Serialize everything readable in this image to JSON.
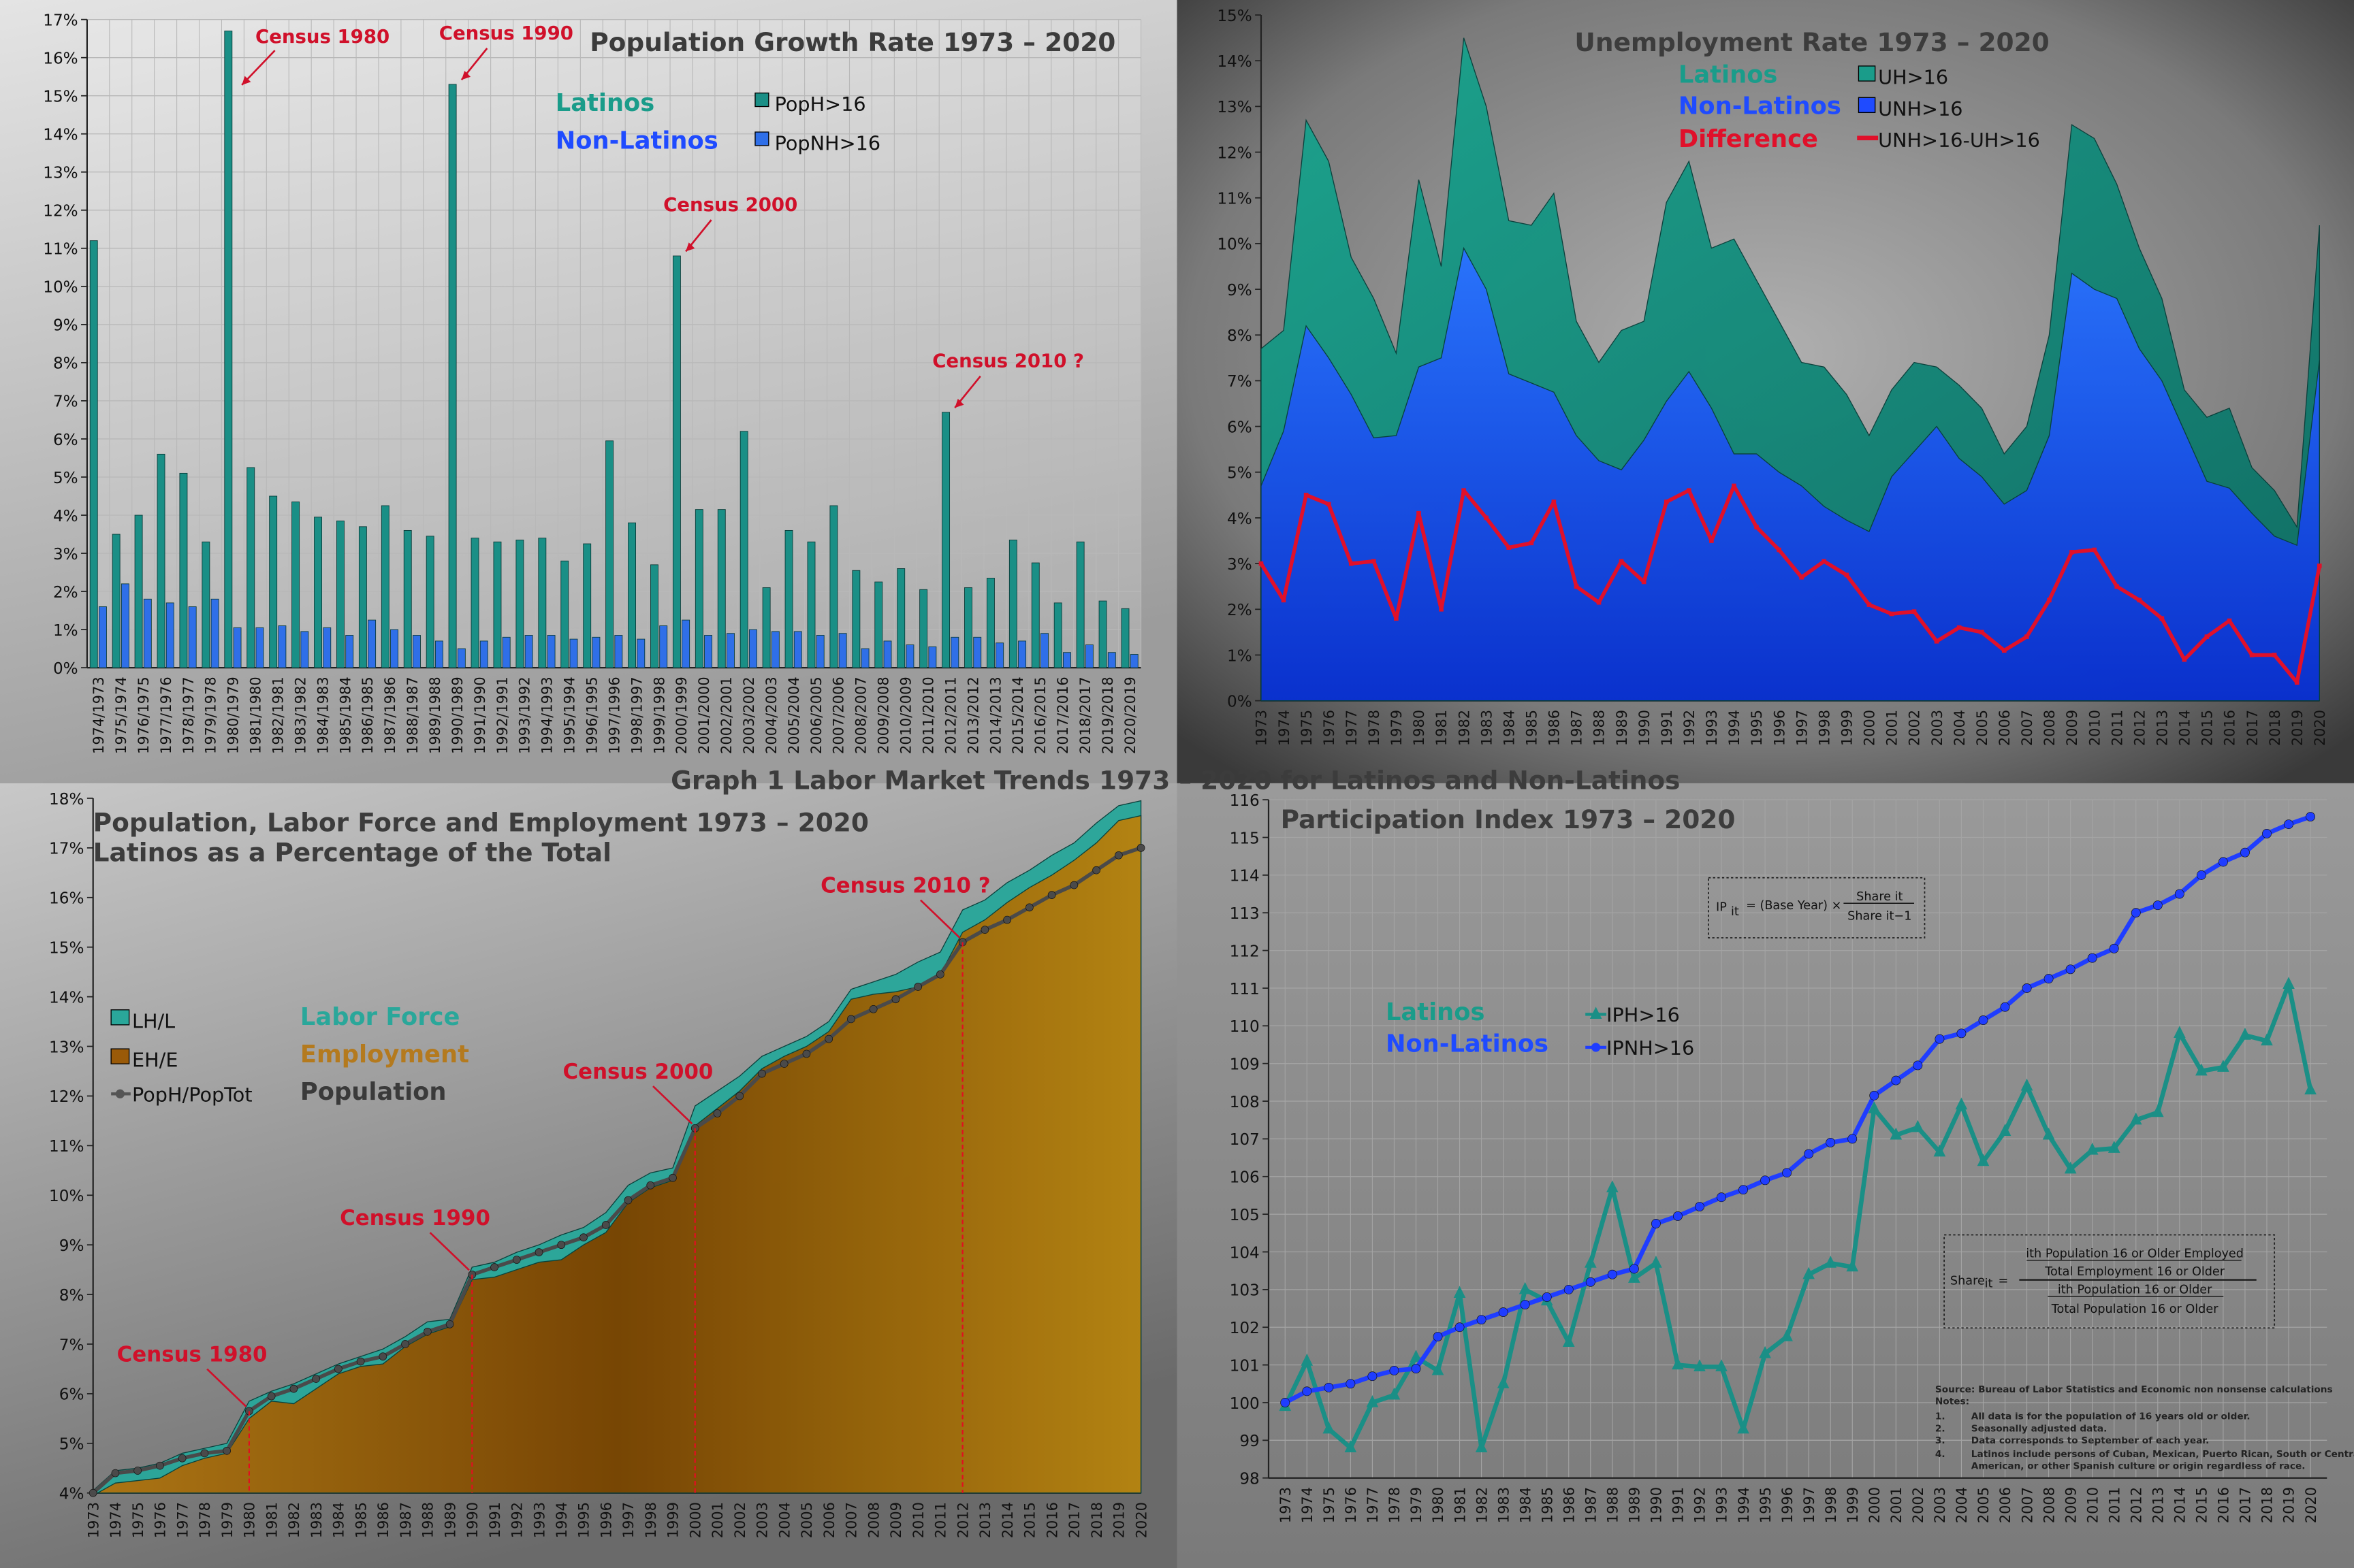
{
  "page_title": "Graph 1 Labor Market Trends 1973 – 2020 for Latinos and Non-Latinos",
  "colors": {
    "latinos": "#1a9c8a",
    "non_latinos": "#1f4bff",
    "difference": "#e0102a",
    "employment": "#b47a1e",
    "population": "#3a3a3a"
  },
  "chart_data": [
    {
      "type": "bar",
      "title": "Population Growth Rate 1973 – 2020",
      "ylim": [
        0,
        17
      ],
      "yticks": [
        "0%",
        "1%",
        "2%",
        "3%",
        "4%",
        "5%",
        "6%",
        "7%",
        "8%",
        "9%",
        "10%",
        "11%",
        "12%",
        "13%",
        "14%",
        "15%",
        "16%",
        "17%"
      ],
      "grid": true,
      "legend_position": "top-right",
      "categories": [
        "1974/1973",
        "1975/1974",
        "1976/1975",
        "1977/1976",
        "1978/1977",
        "1979/1978",
        "1980/1979",
        "1981/1980",
        "1982/1981",
        "1983/1982",
        "1984/1983",
        "1985/1984",
        "1986/1985",
        "1987/1986",
        "1988/1987",
        "1989/1988",
        "1990/1989",
        "1991/1990",
        "1992/1991",
        "1993/1992",
        "1994/1993",
        "1995/1994",
        "1996/1995",
        "1997/1996",
        "1998/1997",
        "1999/1998",
        "2000/1999",
        "2001/2000",
        "2002/2001",
        "2003/2002",
        "2004/2003",
        "2005/2004",
        "2006/2005",
        "2007/2006",
        "2008/2007",
        "2009/2008",
        "2010/2009",
        "2011/2010",
        "2012/2011",
        "2013/2012",
        "2014/2013",
        "2015/2014",
        "2016/2015",
        "2017/2016",
        "2018/2017",
        "2019/2018",
        "2020/2019"
      ],
      "series": [
        {
          "group": "Latinos",
          "name": "PopH>16",
          "color": "#1a8f86",
          "values": [
            11.2,
            3.5,
            4.0,
            5.6,
            5.1,
            3.3,
            16.7,
            5.25,
            4.5,
            4.35,
            3.95,
            3.85,
            3.7,
            4.25,
            3.6,
            3.45,
            15.3,
            3.4,
            3.3,
            3.35,
            3.4,
            2.8,
            3.25,
            5.95,
            3.8,
            2.7,
            10.8,
            4.15,
            4.15,
            6.2,
            2.1,
            3.6,
            3.3,
            4.25,
            2.55,
            2.25,
            2.6,
            2.05,
            6.7,
            2.1,
            2.35,
            3.35,
            2.75,
            1.7,
            3.3,
            1.75,
            1.55
          ]
        },
        {
          "group": "Non-Latinos",
          "name": "PopNH>16",
          "color": "#2f6fe8",
          "values": [
            1.6,
            2.2,
            1.8,
            1.7,
            1.6,
            1.8,
            1.05,
            1.05,
            1.1,
            0.95,
            1.05,
            0.85,
            1.25,
            1.0,
            0.85,
            0.7,
            0.5,
            0.7,
            0.8,
            0.85,
            0.85,
            0.75,
            0.8,
            0.85,
            0.75,
            1.1,
            1.25,
            0.85,
            0.9,
            1.0,
            0.95,
            0.95,
            0.85,
            0.9,
            0.5,
            0.7,
            0.6,
            0.55,
            0.8,
            0.8,
            0.65,
            0.7,
            0.9,
            0.4,
            0.6,
            0.4,
            0.35
          ]
        }
      ],
      "annotations": [
        {
          "label": "Census 1980",
          "category": "1980/1979"
        },
        {
          "label": "Census 1990",
          "category": "1990/1989"
        },
        {
          "label": "Census 2000",
          "category": "2000/1999"
        },
        {
          "label": "Census 2010 ?",
          "category": "2012/2011"
        }
      ]
    },
    {
      "type": "area",
      "title": "Unemployment Rate 1973 – 2020",
      "ylim": [
        0,
        15
      ],
      "yticks": [
        "0%",
        "1%",
        "2%",
        "3%",
        "4%",
        "5%",
        "6%",
        "7%",
        "8%",
        "9%",
        "10%",
        "11%",
        "12%",
        "13%",
        "14%",
        "15%"
      ],
      "grid": false,
      "legend_position": "top",
      "categories": [
        "1973",
        "1974",
        "1975",
        "1976",
        "1977",
        "1978",
        "1979",
        "1980",
        "1981",
        "1982",
        "1983",
        "1984",
        "1985",
        "1986",
        "1987",
        "1988",
        "1989",
        "1990",
        "1991",
        "1992",
        "1993",
        "1994",
        "1995",
        "1996",
        "1997",
        "1998",
        "1999",
        "2000",
        "2001",
        "2002",
        "2003",
        "2004",
        "2005",
        "2006",
        "2007",
        "2008",
        "2009",
        "2010",
        "2011",
        "2012",
        "2013",
        "2014",
        "2015",
        "2016",
        "2017",
        "2018",
        "2019",
        "2020"
      ],
      "series": [
        {
          "group": "Latinos",
          "name": "UH>16",
          "render": "area",
          "color": "#1a9c8a",
          "values": [
            7.7,
            8.1,
            12.7,
            11.8,
            9.7,
            8.8,
            7.6,
            11.4,
            9.5,
            14.5,
            13.0,
            10.5,
            10.4,
            11.1,
            8.3,
            7.4,
            8.1,
            8.3,
            10.9,
            11.8,
            9.9,
            10.1,
            9.2,
            8.3,
            7.4,
            7.3,
            6.7,
            5.8,
            6.8,
            7.4,
            7.3,
            6.9,
            6.4,
            5.4,
            6.0,
            8.0,
            12.6,
            12.3,
            11.3,
            9.9,
            8.8,
            6.8,
            6.2,
            6.4,
            5.1,
            4.6,
            3.8,
            10.4
          ]
        },
        {
          "group": "Non-Latinos",
          "name": "UNH>16",
          "render": "area",
          "color": "#1f4bff",
          "values": [
            4.7,
            5.9,
            8.2,
            7.5,
            6.7,
            5.75,
            5.8,
            7.3,
            7.5,
            9.9,
            9.0,
            7.15,
            6.95,
            6.75,
            5.8,
            5.25,
            5.05,
            5.7,
            6.55,
            7.2,
            6.4,
            5.4,
            5.4,
            5.0,
            4.7,
            4.25,
            3.95,
            3.7,
            4.9,
            5.45,
            6.0,
            5.3,
            4.9,
            4.3,
            4.6,
            5.8,
            9.35,
            9.0,
            8.8,
            7.7,
            7.0,
            5.9,
            4.8,
            4.65,
            4.1,
            3.6,
            3.4,
            7.45
          ]
        },
        {
          "group": "Difference",
          "name": "UNH>16-UH>16",
          "render": "line",
          "color": "#e0102a",
          "values": [
            3.0,
            2.2,
            4.5,
            4.3,
            3.0,
            3.05,
            1.8,
            4.1,
            2.0,
            4.6,
            4.0,
            3.35,
            3.45,
            4.35,
            2.5,
            2.15,
            3.05,
            2.6,
            4.35,
            4.6,
            3.5,
            4.7,
            3.8,
            3.3,
            2.7,
            3.05,
            2.75,
            2.1,
            1.9,
            1.95,
            1.3,
            1.6,
            1.5,
            1.1,
            1.4,
            2.2,
            3.25,
            3.3,
            2.5,
            2.2,
            1.8,
            0.9,
            1.4,
            1.75,
            1.0,
            1.0,
            0.4,
            2.95
          ]
        }
      ]
    },
    {
      "type": "area",
      "title": "Population, Labor Force and Employment  1973 – 2020",
      "subtitle": "Latinos as a Percentage of the Total",
      "ylim": [
        4,
        18
      ],
      "yticks": [
        "4%",
        "5%",
        "6%",
        "7%",
        "8%",
        "9%",
        "10%",
        "11%",
        "12%",
        "13%",
        "14%",
        "15%",
        "16%",
        "17%",
        "18%"
      ],
      "grid": false,
      "legend_position": "left",
      "categories": [
        "1973",
        "1974",
        "1975",
        "1976",
        "1977",
        "1978",
        "1979",
        "1980",
        "1981",
        "1982",
        "1983",
        "1984",
        "1985",
        "1986",
        "1987",
        "1988",
        "1989",
        "1990",
        "1991",
        "1992",
        "1993",
        "1994",
        "1995",
        "1996",
        "1997",
        "1998",
        "1999",
        "2000",
        "2001",
        "2002",
        "2003",
        "2004",
        "2005",
        "2006",
        "2007",
        "2008",
        "2009",
        "2010",
        "2011",
        "2012",
        "2013",
        "2014",
        "2015",
        "2016",
        "2017",
        "2018",
        "2019",
        "2020"
      ],
      "series": [
        {
          "group": "Labor Force",
          "name": "LH/L",
          "render": "area",
          "color": "#2aa79a",
          "values": [
            4.05,
            4.45,
            4.5,
            4.6,
            4.8,
            4.9,
            5.0,
            5.85,
            6.05,
            6.2,
            6.4,
            6.6,
            6.75,
            6.9,
            7.15,
            7.45,
            7.5,
            8.55,
            8.65,
            8.85,
            9.0,
            9.2,
            9.35,
            9.65,
            10.2,
            10.45,
            10.55,
            11.8,
            12.1,
            12.4,
            12.8,
            13.0,
            13.2,
            13.5,
            14.15,
            14.3,
            14.45,
            14.7,
            14.9,
            15.75,
            15.95,
            16.3,
            16.55,
            16.85,
            17.1,
            17.5,
            17.85,
            17.95
          ]
        },
        {
          "group": "Employment",
          "name": "EH/E",
          "render": "area",
          "color": "#9a5a08",
          "values": [
            3.95,
            4.2,
            4.25,
            4.3,
            4.55,
            4.7,
            4.8,
            5.5,
            5.85,
            5.8,
            6.1,
            6.4,
            6.55,
            6.6,
            6.95,
            7.2,
            7.35,
            8.3,
            8.35,
            8.5,
            8.65,
            8.7,
            9.0,
            9.25,
            9.85,
            10.15,
            10.3,
            11.4,
            11.75,
            12.1,
            12.55,
            12.8,
            13.0,
            13.3,
            13.95,
            14.05,
            14.1,
            14.2,
            14.45,
            15.3,
            15.55,
            15.9,
            16.2,
            16.45,
            16.75,
            17.1,
            17.55,
            17.65
          ]
        },
        {
          "group": "Population",
          "name": "PopH/PopTot",
          "render": "line",
          "color": "#4a4a4a",
          "values": [
            4.0,
            4.4,
            4.45,
            4.55,
            4.7,
            4.8,
            4.85,
            5.65,
            5.95,
            6.1,
            6.3,
            6.5,
            6.65,
            6.75,
            7.0,
            7.25,
            7.4,
            8.4,
            8.55,
            8.7,
            8.85,
            9.0,
            9.15,
            9.4,
            9.9,
            10.2,
            10.35,
            11.35,
            11.65,
            12.0,
            12.45,
            12.65,
            12.85,
            13.15,
            13.55,
            13.75,
            13.95,
            14.2,
            14.45,
            15.1,
            15.35,
            15.55,
            15.8,
            16.05,
            16.25,
            16.55,
            16.85,
            17.0
          ]
        }
      ],
      "annotations": [
        {
          "label": "Census 1980",
          "category": "1980"
        },
        {
          "label": "Census 1990",
          "category": "1990"
        },
        {
          "label": "Census 2000",
          "category": "2000"
        },
        {
          "label": "Census 2010 ?",
          "category": "2012"
        }
      ]
    },
    {
      "type": "line",
      "title": "Participation Index 1973 – 2020",
      "ylim": [
        98,
        116
      ],
      "yticks": [
        "98",
        "99",
        "100",
        "101",
        "102",
        "103",
        "104",
        "105",
        "106",
        "107",
        "108",
        "109",
        "110",
        "111",
        "112",
        "113",
        "114",
        "115",
        "116"
      ],
      "grid": true,
      "legend_position": "left",
      "categories": [
        "1973",
        "1974",
        "1975",
        "1976",
        "1977",
        "1978",
        "1979",
        "1980",
        "1981",
        "1982",
        "1983",
        "1984",
        "1985",
        "1986",
        "1987",
        "1988",
        "1989",
        "1990",
        "1991",
        "1992",
        "1993",
        "1994",
        "1995",
        "1996",
        "1997",
        "1998",
        "1999",
        "2000",
        "2001",
        "2002",
        "2003",
        "2004",
        "2005",
        "2006",
        "2007",
        "2008",
        "2009",
        "2010",
        "2011",
        "2012",
        "2013",
        "2014",
        "2015",
        "2016",
        "2017",
        "2018",
        "2019",
        "2020"
      ],
      "series": [
        {
          "group": "Latinos",
          "name": "IPH>16",
          "render": "line",
          "marker": "triangle",
          "color": "#1a8f86",
          "values": [
            99.9,
            101.1,
            99.3,
            98.8,
            100.0,
            100.2,
            101.2,
            100.85,
            102.9,
            98.8,
            100.5,
            103.0,
            102.7,
            101.6,
            103.7,
            105.7,
            103.3,
            103.7,
            101.0,
            100.95,
            100.95,
            99.3,
            101.3,
            101.75,
            103.4,
            103.7,
            103.6,
            107.8,
            107.1,
            107.3,
            106.65,
            107.9,
            106.4,
            107.2,
            108.4,
            107.1,
            106.2,
            106.7,
            106.75,
            107.5,
            107.7,
            109.8,
            108.8,
            108.9,
            109.75,
            109.6,
            111.1,
            108.3
          ]
        },
        {
          "group": "Non-Latinos",
          "name": "IPNH>16",
          "render": "line",
          "marker": "circle",
          "color": "#1f3dff",
          "values": [
            100.0,
            100.3,
            100.4,
            100.5,
            100.7,
            100.85,
            100.9,
            101.75,
            102.0,
            102.2,
            102.4,
            102.6,
            102.8,
            103.0,
            103.2,
            103.4,
            103.55,
            104.75,
            104.95,
            105.2,
            105.45,
            105.65,
            105.9,
            106.1,
            106.6,
            106.9,
            107.0,
            108.15,
            108.55,
            108.95,
            109.65,
            109.8,
            110.15,
            110.5,
            111.0,
            111.25,
            111.5,
            111.8,
            112.05,
            113.0,
            113.2,
            113.5,
            114.0,
            114.35,
            114.6,
            115.1,
            115.35,
            115.55
          ]
        }
      ],
      "formula_ip": {
        "lhs": "IP",
        "lhs_sub": "it",
        "mid": "= (Base Year) ×",
        "num": "Share it",
        "den": "Share it−1"
      },
      "formula_share": {
        "lhs": "Share",
        "lhs_sub": "it",
        "eq": "=",
        "n1": "ith Population 16 or Older Employed",
        "d1": "Total Employment 16 or Older",
        "n2": "ith Population 16 or Older",
        "d2": "Total Population 16 or Older"
      },
      "source": "Source: Bureau of Labor Statistics and Economic non nonsense calculations",
      "notes_label": "Notes:",
      "notes": [
        {
          "num": "1.",
          "text": "All data is for the population of  16 years old or older."
        },
        {
          "num": "2.",
          "text": "Seasonally adjusted data."
        },
        {
          "num": "3.",
          "text": "Data corresponds to September of each year."
        },
        {
          "num": "4.",
          "text": "Latinos include persons of Cuban, Mexican, Puerto Rican, South or Central"
        },
        {
          "num": "",
          "text": "American, or other Spanish culture or origin regardless of race."
        }
      ]
    }
  ]
}
